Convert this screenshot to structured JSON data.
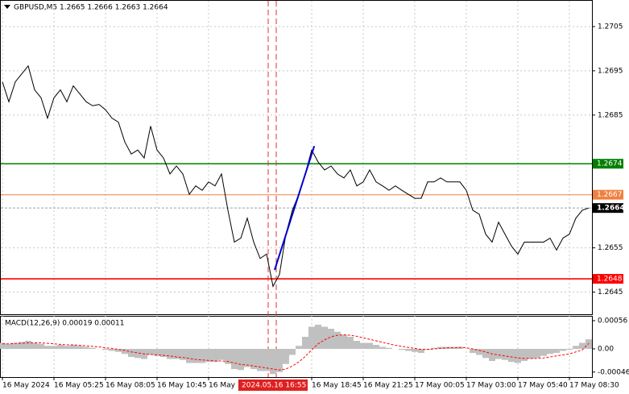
{
  "chart_data": [
    {
      "type": "line",
      "title": "GBPUSD,M5  1.2665 1.2666 1.2663 1.2664",
      "color": "#000000",
      "values": [
        1.26925,
        1.2688,
        1.26925,
        1.26943,
        1.26961,
        1.26907,
        1.26889,
        1.26843,
        1.26889,
        1.26907,
        1.2688,
        1.26916,
        1.26898,
        1.2688,
        1.26871,
        1.26874,
        1.26862,
        1.26843,
        1.26834,
        1.26789,
        1.26762,
        1.26771,
        1.26753,
        1.26825,
        1.26771,
        1.26753,
        1.26717,
        1.26735,
        1.26717,
        1.26671,
        1.2669,
        1.2668,
        1.26699,
        1.2669,
        1.26717,
        1.26635,
        1.26563,
        1.26572,
        1.26617,
        1.26563,
        1.26526,
        1.26536,
        1.26463,
        1.2649,
        1.26581,
        1.26635,
        1.26671,
        1.26717,
        1.26771,
        1.26744,
        1.26726,
        1.26735,
        1.26717,
        1.26708,
        1.26726,
        1.2669,
        1.26699,
        1.26726,
        1.26699,
        1.2669,
        1.2668,
        1.2669,
        1.2668,
        1.26671,
        1.26662,
        1.26662,
        1.26699,
        1.26699,
        1.26708,
        1.26699,
        1.26699,
        1.26699,
        1.2668,
        1.26635,
        1.26626,
        1.26581,
        1.26563,
        1.26608,
        1.26581,
        1.26554,
        1.26536,
        1.26563,
        1.26563,
        1.26563,
        1.26563,
        1.26572,
        1.26545,
        1.26572,
        1.26581,
        1.26617,
        1.26635,
        1.2664
      ],
      "ylim": [
        1.264,
        1.2711
      ],
      "yticks": [
        1.2705,
        1.2695,
        1.2685,
        1.2655,
        1.2645
      ],
      "grid": true,
      "xticks": [
        {
          "value": 0,
          "label": "16 May 2024"
        },
        {
          "value": 8,
          "label": "16 May 05:25"
        },
        {
          "value": 16,
          "label": "16 May 08:05"
        },
        {
          "value": 24,
          "label": "16 May 10:45"
        },
        {
          "value": 32,
          "label": "16 May 13:25"
        },
        {
          "value": 48,
          "label": "16 May 18:45"
        },
        {
          "value": 56,
          "label": "16 May 21:25"
        },
        {
          "value": 64,
          "label": "17 May 00:05"
        },
        {
          "value": 72,
          "label": "17 May 03:00"
        },
        {
          "value": 80,
          "label": "17 May 05:40"
        },
        {
          "value": 88,
          "label": "17 May 08:30"
        }
      ],
      "levels": [
        {
          "value": 1.2674,
          "color": "#008000"
        },
        {
          "value": 1.2667,
          "color": "#f08040"
        },
        {
          "value": 1.2648,
          "color": "#ff0000"
        }
      ],
      "current_price": 1.2664,
      "trendline": {
        "x": [
          42.25,
          48.4
        ],
        "values": [
          1.265,
          1.2678
        ],
        "color": "#0000cd"
      },
      "vlines": [
        41.25,
        42.5
      ],
      "crosshair_label": {
        "value": 42.5,
        "label": "2024.05.16 16:55"
      }
    },
    {
      "type": "macd",
      "title": "MACD(12,26,9) 0.00019 0.00011",
      "histogram": {
        "color": "#c0c0c0",
        "values": [
          0.00012,
          0.0001,
          0.00012,
          0.00014,
          0.00016,
          0.00012,
          0.0001,
          6e-05,
          6e-05,
          8e-05,
          6e-05,
          8e-05,
          6e-05,
          4e-05,
          2e-05,
          0,
          -2e-05,
          -4e-05,
          -6e-05,
          -0.0001,
          -0.00016,
          -0.00018,
          -0.0002,
          -0.00012,
          -0.00014,
          -0.00016,
          -0.0002,
          -0.0002,
          -0.00022,
          -0.00028,
          -0.00028,
          -0.00028,
          -0.00026,
          -0.00026,
          -0.00022,
          -0.0003,
          -0.0004,
          -0.00042,
          -0.00036,
          -0.0004,
          -0.00044,
          -0.00044,
          -0.0005,
          -0.00046,
          -0.0003,
          -0.00012,
          6e-05,
          0.00024,
          0.00044,
          0.00048,
          0.00044,
          0.0004,
          0.00034,
          0.00028,
          0.00024,
          0.00016,
          0.00012,
          0.00012,
          8e-05,
          4e-05,
          2e-05,
          0,
          -2e-05,
          -4e-05,
          -6e-05,
          -8e-05,
          -2e-05,
          2e-05,
          4e-05,
          4e-05,
          4e-05,
          4e-05,
          0,
          -8e-05,
          -0.00012,
          -0.00018,
          -0.00024,
          -0.0002,
          -0.00022,
          -0.00026,
          -0.00028,
          -0.00024,
          -0.0002,
          -0.00018,
          -0.00014,
          -0.0001,
          -8e-05,
          -4e-05,
          -2e-05,
          6e-05,
          0.00012,
          0.00019
        ]
      },
      "signal": {
        "color": "#ff0000",
        "values": [
          0.0001,
          0.0001,
          0.00011,
          0.00011,
          0.00012,
          0.00012,
          0.00012,
          0.00011,
          0.0001,
          9e-05,
          8e-05,
          8e-05,
          7e-05,
          6e-05,
          5e-05,
          4e-05,
          2e-05,
          1e-05,
          -1e-05,
          -3e-05,
          -6e-05,
          -8e-05,
          -0.0001,
          -0.00011,
          -0.00012,
          -0.00013,
          -0.00014,
          -0.00016,
          -0.00017,
          -0.00019,
          -0.00021,
          -0.00022,
          -0.00023,
          -0.00024,
          -0.00024,
          -0.00025,
          -0.00028,
          -0.00031,
          -0.00032,
          -0.00034,
          -0.00036,
          -0.00038,
          -0.0004,
          -0.00042,
          -0.0004,
          -0.00034,
          -0.00026,
          -0.00015,
          -2e-05,
          0.0001,
          0.00018,
          0.00024,
          0.00027,
          0.00028,
          0.00027,
          0.00025,
          0.00022,
          0.00019,
          0.00016,
          0.00013,
          0.0001,
          7e-05,
          5e-05,
          3e-05,
          1e-05,
          -1e-05,
          -1e-05,
          0,
          1e-05,
          2e-05,
          2e-05,
          3e-05,
          2e-05,
          0,
          -3e-05,
          -6e-05,
          -0.0001,
          -0.00012,
          -0.00014,
          -0.00016,
          -0.00018,
          -0.00019,
          -0.00019,
          -0.00019,
          -0.00018,
          -0.00016,
          -0.00014,
          -0.00012,
          -0.0001,
          -6e-05,
          -2e-05,
          0.00011
        ]
      },
      "ylim": [
        -0.00056,
        0.00064
      ],
      "yticks": [
        0.00056,
        {
          "value": 0,
          "label": "0.00"
        },
        -0.00046
      ]
    }
  ]
}
